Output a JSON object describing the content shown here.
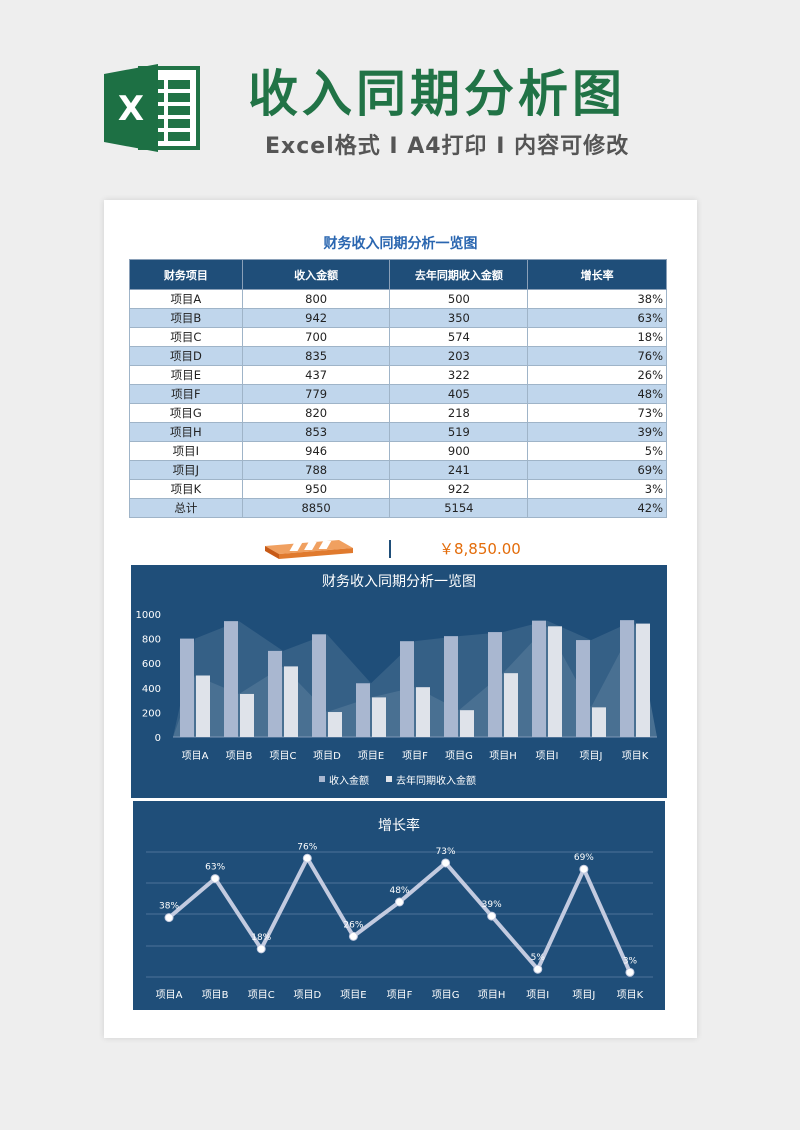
{
  "banner": {
    "title": "收入同期分析图",
    "subtitle": "Excel格式 I A4打印 I 内容可修改",
    "logo_letter": "X"
  },
  "sheet": {
    "title": "财务收入同期分析一览图",
    "columns": [
      "财务项目",
      "收入金额",
      "去年同期收入金额",
      "增长率"
    ],
    "rows": [
      {
        "item": "项目A",
        "income": "800",
        "last": "500",
        "growth": "38%"
      },
      {
        "item": "项目B",
        "income": "942",
        "last": "350",
        "growth": "63%"
      },
      {
        "item": "项目C",
        "income": "700",
        "last": "574",
        "growth": "18%"
      },
      {
        "item": "项目D",
        "income": "835",
        "last": "203",
        "growth": "76%"
      },
      {
        "item": "项目E",
        "income": "437",
        "last": "322",
        "growth": "26%"
      },
      {
        "item": "项目F",
        "income": "779",
        "last": "405",
        "growth": "48%"
      },
      {
        "item": "项目G",
        "income": "820",
        "last": "218",
        "growth": "73%"
      },
      {
        "item": "项目H",
        "income": "853",
        "last": "519",
        "growth": "39%"
      },
      {
        "item": "项目I",
        "income": "946",
        "last": "900",
        "growth": "5%"
      },
      {
        "item": "项目J",
        "income": "788",
        "last": "241",
        "growth": "69%"
      },
      {
        "item": "项目K",
        "income": "950",
        "last": "922",
        "growth": "3%"
      },
      {
        "item": "总计",
        "income": "8850",
        "last": "5154",
        "growth": "42%"
      }
    ],
    "total_display": "￥8,850.00"
  },
  "colors": {
    "brand_green": "#217346",
    "panel_blue": "#1f4e79",
    "header_blue": "#1f4e79",
    "row_alt": "#c0d6ec",
    "accent_orange": "#e36c0a",
    "bar_income": "#a9b7d0",
    "bar_last": "#dfe3ea"
  },
  "chart_data": [
    {
      "type": "bar",
      "title": "财务收入同期分析一览图",
      "categories": [
        "项目A",
        "项目B",
        "项目C",
        "项目D",
        "项目E",
        "项目F",
        "项目G",
        "项目H",
        "项目I",
        "项目J",
        "项目K"
      ],
      "series": [
        {
          "name": "收入金额",
          "values": [
            800,
            942,
            700,
            835,
            437,
            779,
            820,
            853,
            946,
            788,
            950
          ]
        },
        {
          "name": "去年同期收入金额",
          "values": [
            500,
            350,
            574,
            203,
            322,
            405,
            218,
            519,
            900,
            241,
            922
          ]
        }
      ],
      "ylim": [
        0,
        1000
      ],
      "yticks": [
        0,
        200,
        400,
        600,
        800,
        1000
      ],
      "legend": "bottom",
      "grid": false
    },
    {
      "type": "line",
      "title": "增长率",
      "categories": [
        "项目A",
        "项目B",
        "项目C",
        "项目D",
        "项目E",
        "项目F",
        "项目G",
        "项目H",
        "项目I",
        "项目J",
        "项目K"
      ],
      "values": [
        38,
        63,
        18,
        76,
        26,
        48,
        73,
        39,
        5,
        69,
        3
      ],
      "labels": [
        "38%",
        "63%",
        "18%",
        "76%",
        "26%",
        "48%",
        "73%",
        "39%",
        "5%",
        "69%",
        "3%"
      ],
      "grid": true,
      "legend": "none"
    }
  ]
}
